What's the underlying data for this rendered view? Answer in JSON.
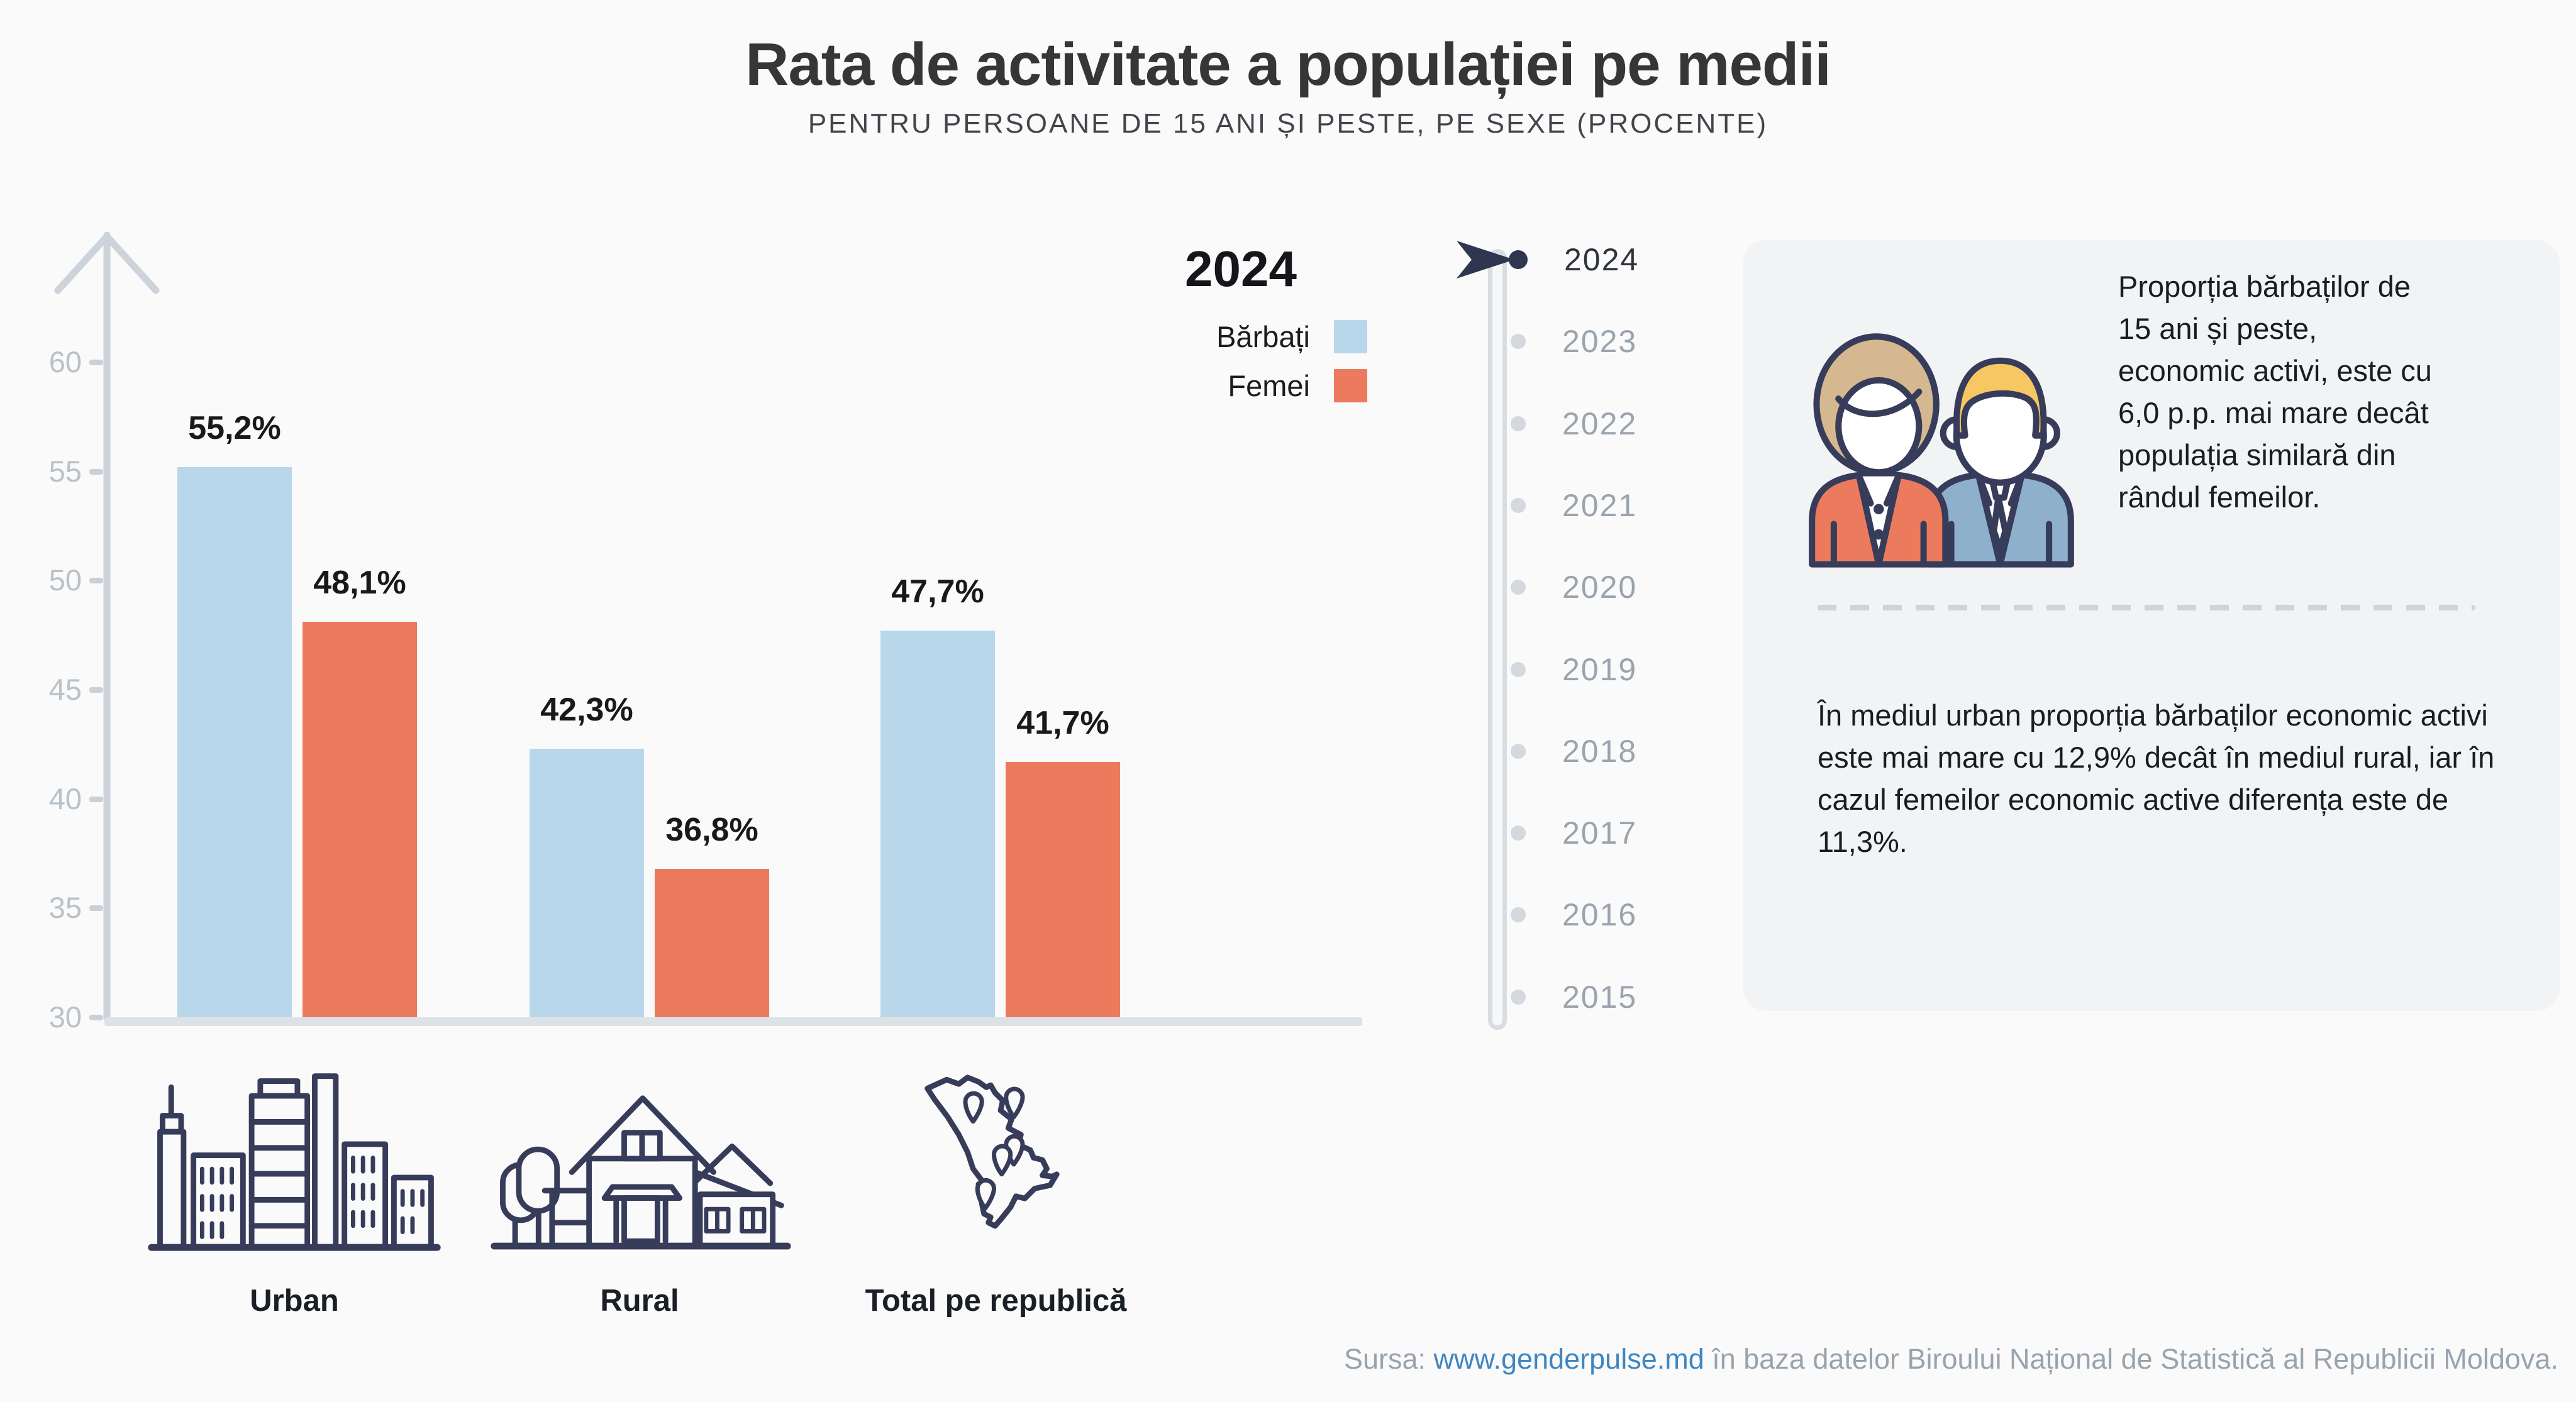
{
  "header": {
    "title": "Rata de activitate a populației pe medii",
    "subtitle": "PENTRU PERSOANE DE 15 ANI ȘI PESTE, PE SEXE (PROCENTE)"
  },
  "legend": {
    "year": "2024",
    "series": [
      {
        "label": "Bărbați",
        "color": "#b8d7ea"
      },
      {
        "label": "Femei",
        "color": "#ec7a5c"
      }
    ]
  },
  "chart_data": {
    "type": "bar",
    "title": "Rata de activitate a populației pe medii",
    "subtitle": "PENTRU PERSOANE DE 15 ANI ȘI PESTE, PE SEXE (PROCENTE)",
    "year": "2024",
    "categories": [
      "Urban",
      "Rural",
      "Total pe republică"
    ],
    "series": [
      {
        "name": "Bărbați",
        "color": "#b8d7ea",
        "values": [
          55.2,
          42.3,
          47.7
        ],
        "labels": [
          "55,2%",
          "42,3%",
          "47,7%"
        ]
      },
      {
        "name": "Femei",
        "color": "#ec7a5c",
        "values": [
          48.1,
          36.8,
          41.7
        ],
        "labels": [
          "48,1%",
          "36,8%",
          "41,7%"
        ]
      }
    ],
    "xlabel": "",
    "ylabel": "",
    "ylim": [
      30,
      65
    ],
    "yticks": [
      60,
      55,
      50,
      45,
      40,
      35,
      30
    ],
    "grid": false,
    "legend_position": "top-right"
  },
  "timeline": {
    "selected": "2024",
    "years": [
      "2024",
      "2023",
      "2022",
      "2021",
      "2020",
      "2019",
      "2018",
      "2017",
      "2016",
      "2015"
    ]
  },
  "info_panel": {
    "paragraph1": "Proporția bărbaților de 15 ani și peste, economic activi, este cu 6,0 p.p. mai mare decât populația similară din rândul femeilor.",
    "paragraph2": "În mediul urban proporția bărbaților economic activi este mai mare cu 12,9% decât în mediul rural, iar în cazul femeilor economic active diferența este de 11,3%."
  },
  "footer": {
    "prefix": "Sursa: ",
    "link": "www.genderpulse.md",
    "suffix": " în baza datelor Biroului Național de Statistică al Republicii Moldova."
  },
  "icons": {
    "panel": "woman-man-icon",
    "timeline": "year-cursor-icon",
    "categories": [
      "city-buildings-icon",
      "rural-house-icon",
      "moldova-map-icon"
    ]
  },
  "colors": {
    "background": "#fafafa",
    "panel": "#f1f3f5",
    "bar_men": "#b8d7ea",
    "bar_women": "#ec7a5c",
    "axis": "#ccd3da",
    "baseline": "#dde2e7",
    "tick_text": "#b9c1c9",
    "outline_navy": "#363c59",
    "timeline_active": "#2e3650",
    "timeline_inactive": "#9aa4ae",
    "link": "#3e86c2",
    "footer_text": "#98a3ae"
  }
}
